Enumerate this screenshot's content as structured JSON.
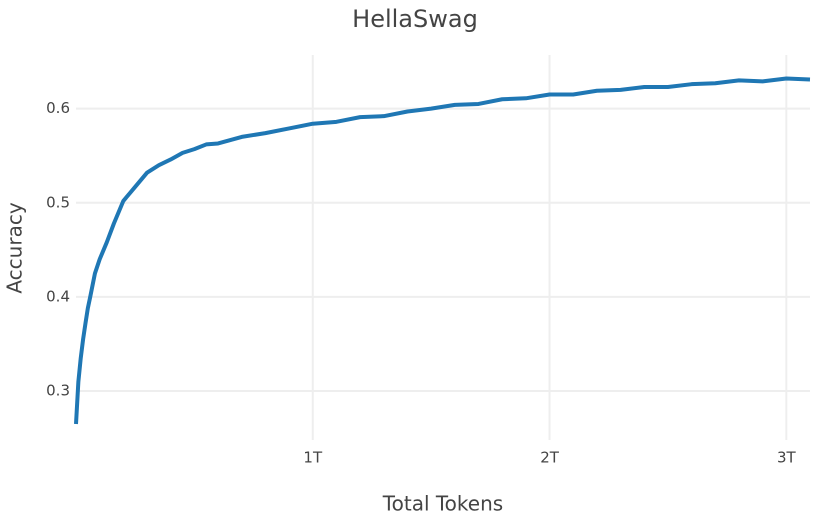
{
  "chart_data": {
    "type": "line",
    "title": "HellaSwag",
    "x_label": "Total Tokens",
    "y_label": "Accuracy",
    "x": [
      0,
      0.01,
      0.02,
      0.03,
      0.04,
      0.05,
      0.06,
      0.08,
      0.1,
      0.13,
      0.16,
      0.2,
      0.25,
      0.3,
      0.35,
      0.4,
      0.45,
      0.5,
      0.55,
      0.6,
      0.7,
      0.8,
      0.9,
      1.0,
      1.1,
      1.2,
      1.3,
      1.4,
      1.5,
      1.6,
      1.7,
      1.8,
      1.9,
      2.0,
      2.1,
      2.2,
      2.3,
      2.4,
      2.5,
      2.6,
      2.7,
      2.8,
      2.9,
      3.0,
      3.1
    ],
    "series": [
      {
        "name": "HellaSwag",
        "color": "#1f77b4",
        "values": [
          0.265,
          0.31,
          0.335,
          0.355,
          0.372,
          0.388,
          0.4,
          0.425,
          0.44,
          0.458,
          0.478,
          0.502,
          0.517,
          0.532,
          0.54,
          0.546,
          0.553,
          0.557,
          0.562,
          0.563,
          0.57,
          0.574,
          0.579,
          0.584,
          0.586,
          0.591,
          0.592,
          0.597,
          0.6,
          0.604,
          0.605,
          0.61,
          0.611,
          0.615,
          0.615,
          0.619,
          0.62,
          0.623,
          0.623,
          0.626,
          0.627,
          0.63,
          0.629,
          0.632,
          0.631
        ]
      }
    ],
    "xlim": [
      0,
      3.1
    ],
    "ylim": [
      0.248,
      0.657
    ],
    "xticks": [
      {
        "value": 1,
        "label": "1T"
      },
      {
        "value": 2,
        "label": "2T"
      },
      {
        "value": 3,
        "label": "3T"
      }
    ],
    "yticks": [
      0.3,
      0.4,
      0.5,
      0.6
    ],
    "grid": true
  }
}
